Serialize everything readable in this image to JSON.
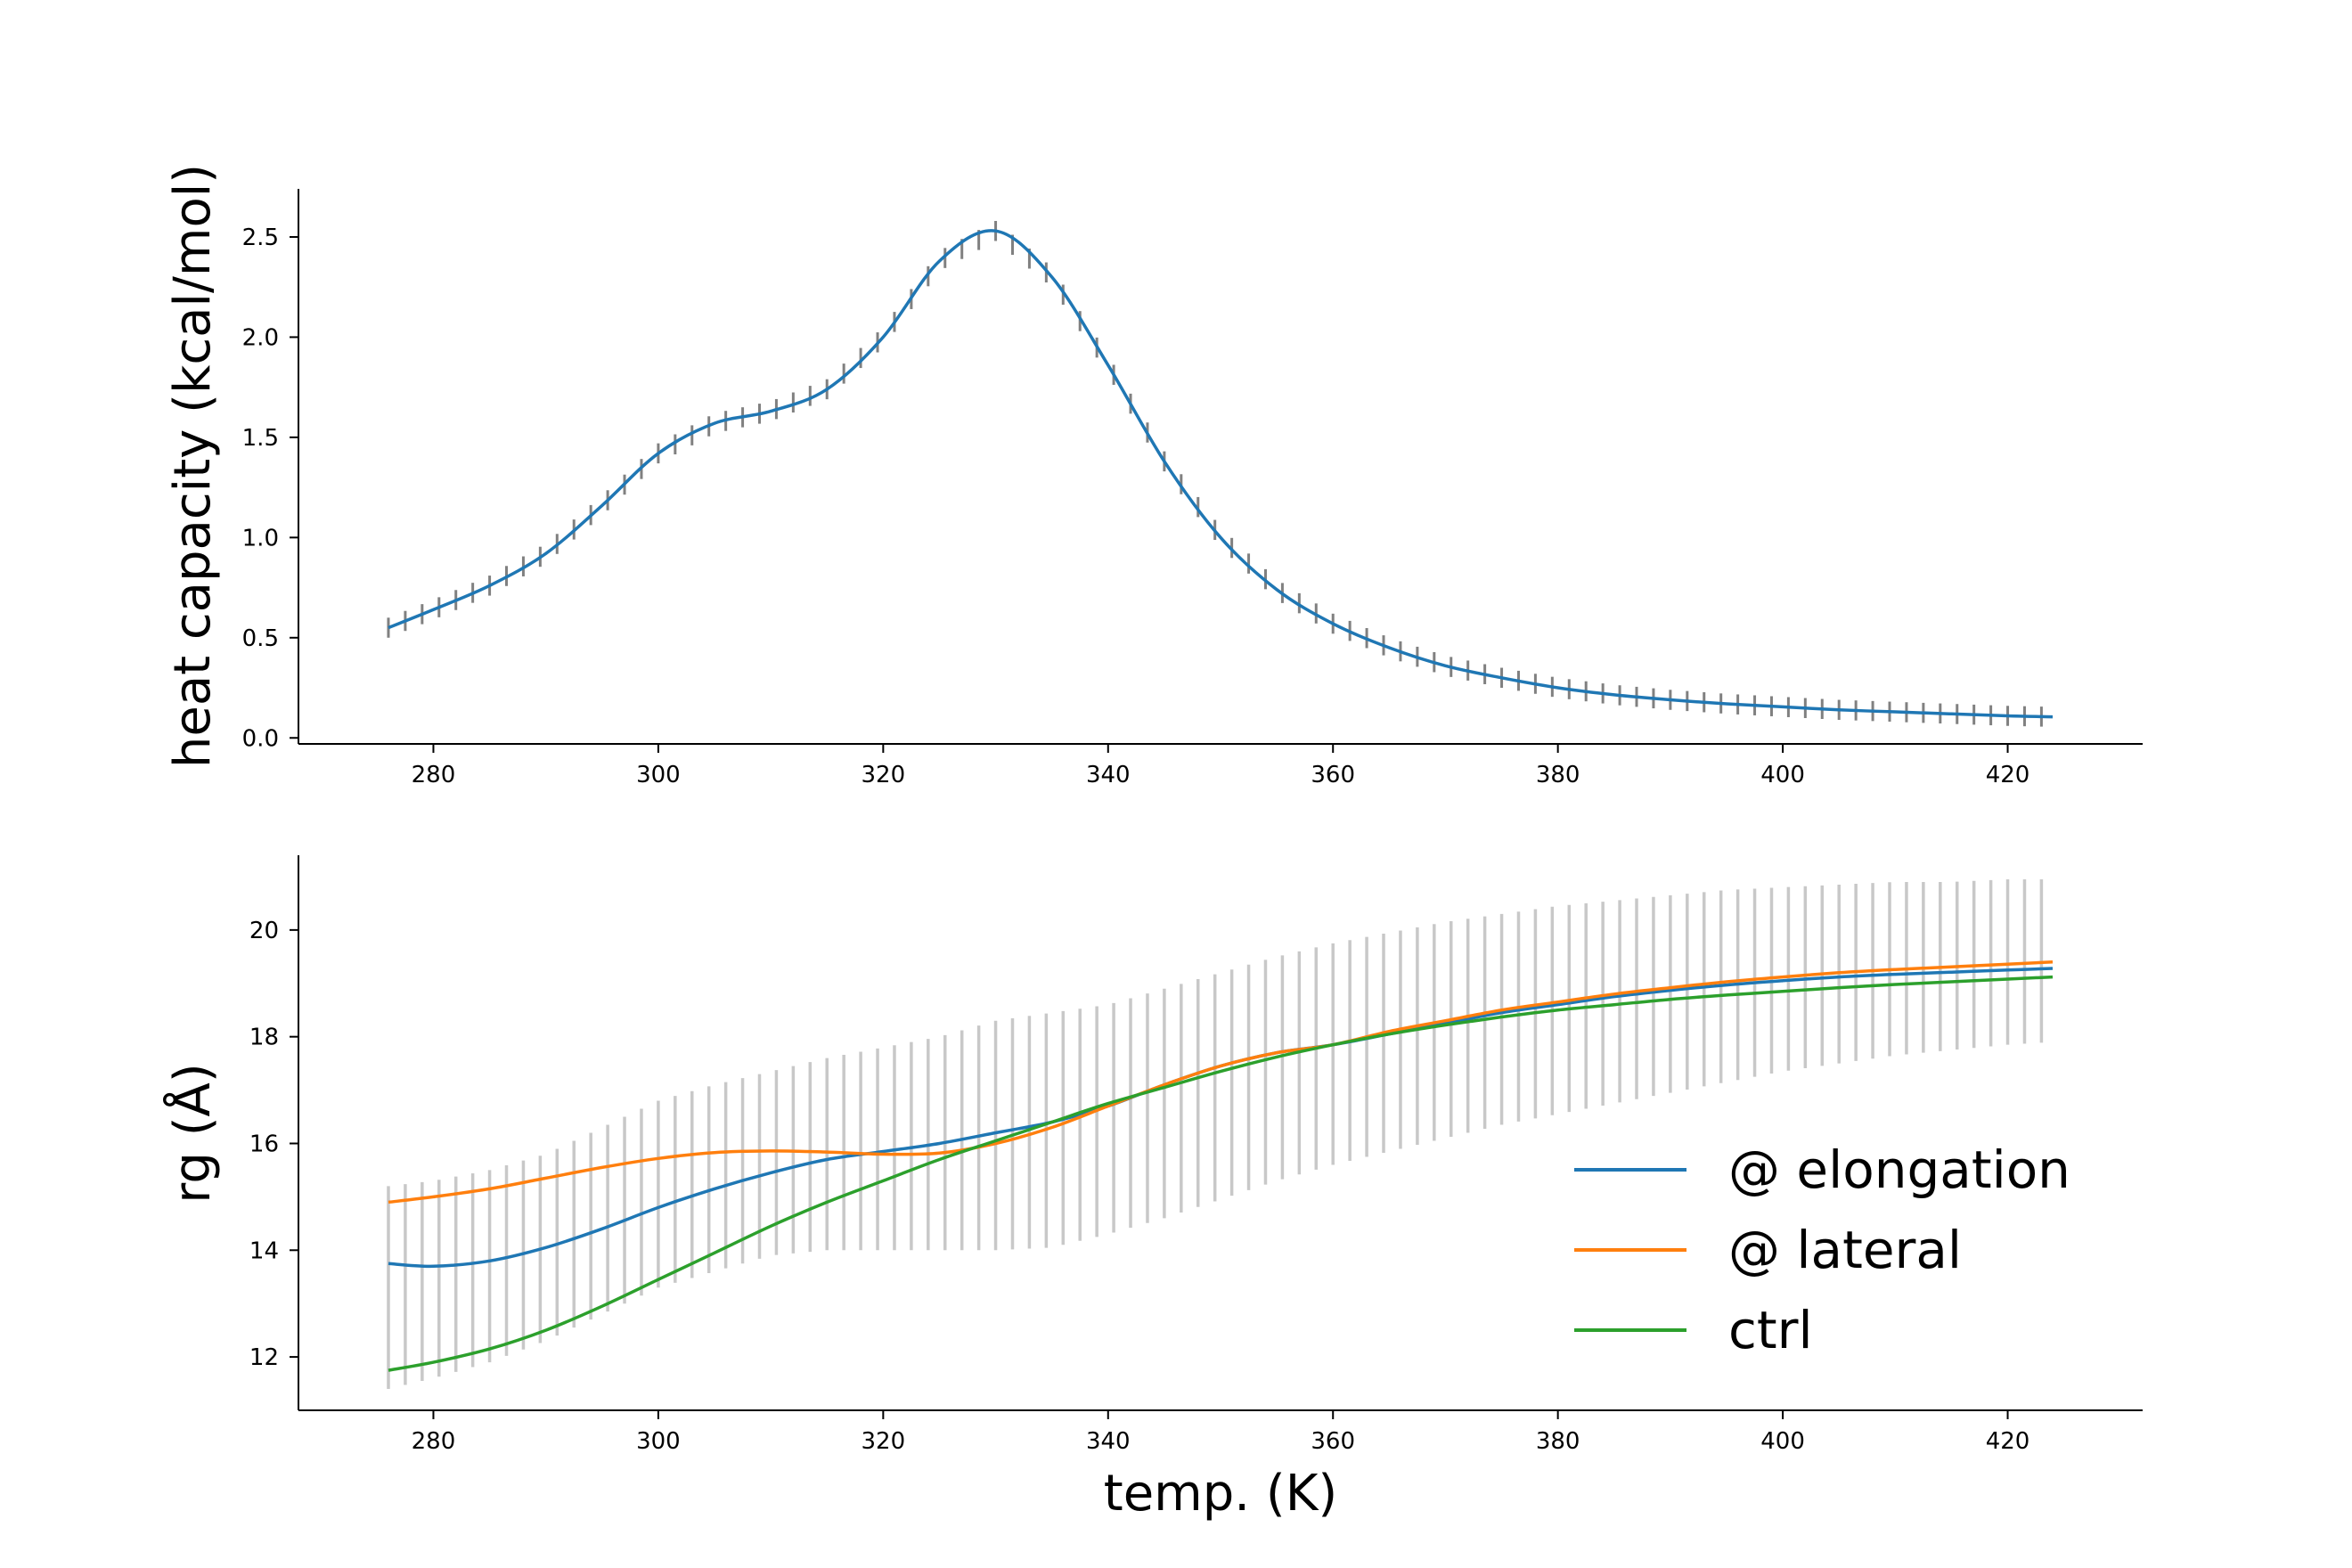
{
  "chart_data": [
    {
      "type": "line",
      "xlabel": "",
      "ylabel": "heat capacity (kcal/mol)",
      "xlim": [
        268,
        432
      ],
      "ylim": [
        -0.03,
        2.74
      ],
      "xticks": [
        "280",
        "300",
        "320",
        "340",
        "360",
        "380",
        "400",
        "420"
      ],
      "yticks": [
        "0.0",
        "0.5",
        "1.0",
        "1.5",
        "2.0",
        "2.5"
      ],
      "grid": false,
      "x": [
        276,
        280,
        285,
        290,
        295,
        300,
        305,
        310,
        315,
        320,
        325,
        330,
        335,
        340,
        345,
        350,
        355,
        360,
        365,
        370,
        375,
        380,
        385,
        390,
        395,
        400,
        405,
        410,
        415,
        420,
        424
      ],
      "series": [
        {
          "color": "#1f77b4",
          "error_bar": 0.05,
          "values": [
            0.55,
            0.64,
            0.76,
            0.92,
            1.16,
            1.42,
            1.57,
            1.63,
            1.74,
            2.0,
            2.38,
            2.53,
            2.3,
            1.86,
            1.38,
            1.0,
            0.74,
            0.57,
            0.45,
            0.36,
            0.3,
            0.25,
            0.215,
            0.19,
            0.17,
            0.155,
            0.14,
            0.13,
            0.12,
            0.11,
            0.105
          ]
        }
      ]
    },
    {
      "type": "line",
      "xlabel": "temp. (K)",
      "ylabel": "rg (Å)",
      "xlim": [
        268,
        432
      ],
      "ylim": [
        11.0,
        21.4
      ],
      "xticks": [
        "280",
        "300",
        "320",
        "340",
        "360",
        "380",
        "400",
        "420"
      ],
      "yticks": [
        "12",
        "14",
        "16",
        "18",
        "20"
      ],
      "grid": false,
      "legend_position": "lower-right",
      "x": [
        276,
        280,
        285,
        290,
        295,
        300,
        305,
        310,
        315,
        320,
        325,
        330,
        335,
        340,
        345,
        350,
        355,
        360,
        365,
        370,
        375,
        380,
        385,
        390,
        395,
        400,
        405,
        410,
        415,
        420,
        424
      ],
      "error_band": {
        "color": "#c8c8c8",
        "lower": [
          11.4,
          11.6,
          11.9,
          12.3,
          12.8,
          13.3,
          13.6,
          13.9,
          14.0,
          14.0,
          14.0,
          14.0,
          14.05,
          14.3,
          14.6,
          14.95,
          15.3,
          15.6,
          15.85,
          16.1,
          16.35,
          16.55,
          16.75,
          16.95,
          17.15,
          17.35,
          17.5,
          17.65,
          17.75,
          17.85,
          17.9
        ],
        "upper": [
          15.2,
          15.3,
          15.5,
          15.8,
          16.3,
          16.8,
          17.1,
          17.35,
          17.6,
          17.8,
          18.0,
          18.3,
          18.45,
          18.6,
          18.9,
          19.2,
          19.5,
          19.75,
          19.95,
          20.15,
          20.3,
          20.45,
          20.55,
          20.65,
          20.75,
          20.8,
          20.85,
          20.9,
          20.9,
          20.95,
          20.95
        ]
      },
      "series": [
        {
          "name": "@ elongation",
          "color": "#1f77b4",
          "values": [
            13.75,
            13.7,
            13.8,
            14.05,
            14.4,
            14.8,
            15.15,
            15.45,
            15.7,
            15.85,
            16.0,
            16.2,
            16.4,
            16.7,
            17.1,
            17.45,
            17.7,
            17.85,
            18.05,
            18.25,
            18.45,
            18.6,
            18.75,
            18.87,
            18.97,
            19.05,
            19.12,
            19.17,
            19.21,
            19.25,
            19.28
          ]
        },
        {
          "name": "@ lateral",
          "color": "#ff7f0e",
          "values": [
            14.9,
            15.0,
            15.15,
            15.35,
            15.55,
            15.72,
            15.83,
            15.86,
            15.84,
            15.8,
            15.82,
            16.0,
            16.3,
            16.7,
            17.1,
            17.45,
            17.7,
            17.85,
            18.1,
            18.3,
            18.5,
            18.65,
            18.8,
            18.92,
            19.03,
            19.12,
            19.2,
            19.26,
            19.31,
            19.36,
            19.4
          ]
        },
        {
          "name": "ctrl",
          "color": "#2ca02c",
          "values": [
            11.75,
            11.9,
            12.15,
            12.5,
            12.95,
            13.45,
            13.95,
            14.45,
            14.9,
            15.3,
            15.7,
            16.05,
            16.4,
            16.75,
            17.05,
            17.35,
            17.62,
            17.85,
            18.05,
            18.22,
            18.37,
            18.5,
            18.6,
            18.7,
            18.78,
            18.85,
            18.92,
            18.98,
            19.03,
            19.08,
            19.12
          ]
        }
      ]
    }
  ]
}
